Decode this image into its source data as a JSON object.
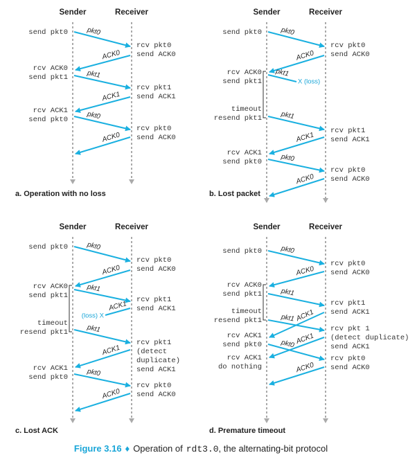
{
  "panels": [
    {
      "sender": "Sender",
      "receiver": "Receiver",
      "caption": "a. Operation with no loss",
      "sender_notes": [
        "send pkt0",
        "rcv ACK0",
        "send pkt1",
        "rcv ACK1",
        "send pkt0"
      ],
      "receiver_notes": [
        "rcv pkt0",
        "send ACK0",
        "rcv pkt1",
        "send ACK1",
        "rcv pkt0",
        "send ACK0"
      ],
      "messages": [
        "pkt0",
        "ACK0",
        "pkt1",
        "ACK1",
        "pkt0",
        "ACK0"
      ]
    },
    {
      "sender": "Sender",
      "receiver": "Receiver",
      "caption": "b. Lost packet",
      "sender_notes": [
        "send pkt0",
        "rcv ACK0",
        "send pkt1",
        "timeout",
        "resend pkt1",
        "rcv ACK1",
        "send pkt0"
      ],
      "receiver_notes": [
        "rcv pkt0",
        "send ACK0",
        "rcv pkt1",
        "send ACK1",
        "rcv pkt0",
        "send ACK0"
      ],
      "messages": [
        "pkt0",
        "ACK0",
        "pkt1",
        "pkt1",
        "ACK1",
        "pkt0",
        "ACK0"
      ],
      "loss": "X (loss)"
    },
    {
      "sender": "Sender",
      "receiver": "Receiver",
      "caption": "c. Lost ACK",
      "sender_notes": [
        "send pkt0",
        "rcv ACK0",
        "send pkt1",
        "timeout",
        "resend pkt1",
        "rcv ACK1",
        "send pkt0"
      ],
      "receiver_notes": [
        "rcv pkt0",
        "send ACK0",
        "rcv pkt1",
        "send ACK1",
        "rcv pkt1",
        "(detect",
        "duplicate)",
        "send ACK1",
        "rcv pkt0",
        "send ACK0"
      ],
      "messages": [
        "pkt0",
        "ACK0",
        "pkt1",
        "ACK1",
        "pkt1",
        "ACK1",
        "pkt0",
        "ACK0"
      ],
      "loss": "(loss) X"
    },
    {
      "sender": "Sender",
      "receiver": "Receiver",
      "caption": "d. Premature timeout",
      "sender_notes": [
        "send pkt0",
        "rcv ACK0",
        "send pkt1",
        "timeout",
        "resend pkt1",
        "rcv ACK1",
        "send pkt0",
        "rcv ACK1",
        "do nothing"
      ],
      "receiver_notes": [
        "rcv pkt0",
        "send ACK0",
        "rcv pkt1",
        "send ACK1",
        "rcv pkt 1",
        "(detect duplicate)",
        "send ACK1",
        "rcv pkt0",
        "send ACK0"
      ],
      "messages": [
        "pkt0",
        "ACK0",
        "pkt1",
        "pkt1",
        "ACK1",
        "ACK1",
        "pkt0",
        "ACK0"
      ]
    }
  ],
  "figure_caption": {
    "label": "Figure 3.16",
    "text": "Operation of",
    "code": "rdt3.0",
    "rest": ", the alternating-bit protocol"
  }
}
